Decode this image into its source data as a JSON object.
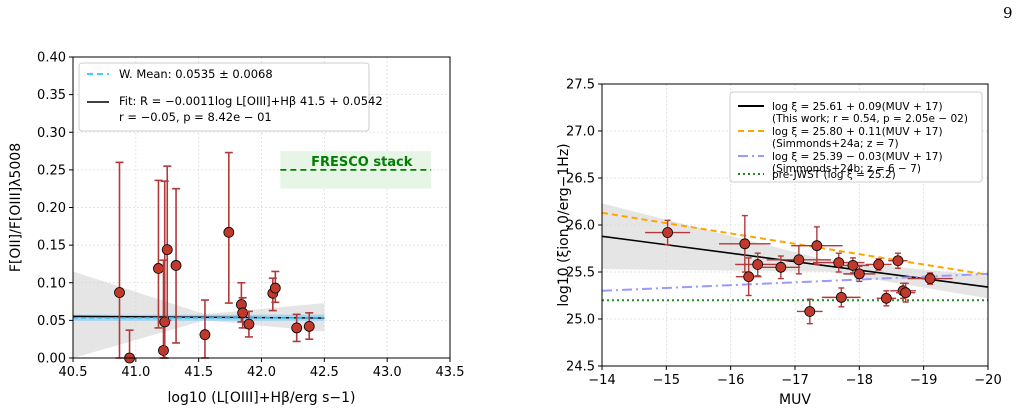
{
  "page_number": "9",
  "chart_data": [
    {
      "type": "scatter",
      "xlabel": "log10 (L[OIII]+Hβ/erg s−1)",
      "ylabel": "F[OII]/F[OIII]λ5008",
      "xlim": [
        40.5,
        43.5
      ],
      "ylim": [
        0.0,
        0.4
      ],
      "xticks": [
        "40.5",
        "41.0",
        "41.5",
        "42.0",
        "42.5",
        "43.0",
        "43.5"
      ],
      "yticks": [
        "0.00",
        "0.05",
        "0.10",
        "0.15",
        "0.20",
        "0.25",
        "0.30",
        "0.35",
        "0.40"
      ],
      "grid": true,
      "legend_position": "top-left",
      "legend": [
        {
          "label": "W. Mean: 0.0535 ± 0.0068",
          "color": "#00bfff",
          "style": "dashed"
        },
        {
          "label": "Fit: R = −0.0011log L[OIII]+Hβ 41.5 + 0.0542",
          "label2": "r = −0.05, p = 8.42e − 01",
          "color": "#000000",
          "style": "solid"
        }
      ],
      "annotation": {
        "label": "FRESCO stack",
        "color": "#008000",
        "x_range": [
          42.15,
          43.35
        ],
        "y": 0.25
      },
      "weighted_mean": {
        "value": 0.0535,
        "err": 0.0068
      },
      "fit": {
        "slope": -0.0011,
        "intercept": 0.0542,
        "x0": 41.5,
        "x_range": [
          40.5,
          42.5
        ]
      },
      "points": [
        {
          "x": 40.87,
          "y": 0.087,
          "ylo": 0.0,
          "yhi": 0.26
        },
        {
          "x": 40.95,
          "y": 0.0,
          "ylo": 0.0,
          "yhi": 0.037
        },
        {
          "x": 41.18,
          "y": 0.119,
          "ylo": 0.04,
          "yhi": 0.236
        },
        {
          "x": 41.22,
          "y": 0.01,
          "ylo": 0.0,
          "yhi": 0.13
        },
        {
          "x": 41.23,
          "y": 0.048,
          "ylo": 0.0,
          "yhi": 0.235
        },
        {
          "x": 41.25,
          "y": 0.144,
          "ylo": 0.05,
          "yhi": 0.255
        },
        {
          "x": 41.32,
          "y": 0.123,
          "ylo": 0.02,
          "yhi": 0.225
        },
        {
          "x": 41.55,
          "y": 0.031,
          "ylo": 0.0,
          "yhi": 0.077
        },
        {
          "x": 41.74,
          "y": 0.167,
          "ylo": 0.073,
          "yhi": 0.273
        },
        {
          "x": 41.84,
          "y": 0.071,
          "ylo": 0.048,
          "yhi": 0.1
        },
        {
          "x": 41.85,
          "y": 0.06,
          "ylo": 0.04,
          "yhi": 0.08
        },
        {
          "x": 41.9,
          "y": 0.045,
          "ylo": 0.028,
          "yhi": 0.062
        },
        {
          "x": 42.09,
          "y": 0.086,
          "ylo": 0.063,
          "yhi": 0.106
        },
        {
          "x": 42.11,
          "y": 0.093,
          "ylo": 0.074,
          "yhi": 0.115
        },
        {
          "x": 42.28,
          "y": 0.04,
          "ylo": 0.022,
          "yhi": 0.058
        },
        {
          "x": 42.38,
          "y": 0.042,
          "ylo": 0.025,
          "yhi": 0.06
        }
      ]
    },
    {
      "type": "scatter",
      "xlabel": "MUV",
      "ylabel": "log10 (ξion,0/erg−1Hz)",
      "xlim": [
        -14,
        -20
      ],
      "ylim": [
        24.5,
        27.5
      ],
      "xticks": [
        "−14",
        "−15",
        "−16",
        "−17",
        "−18",
        "−19",
        "−20"
      ],
      "yticks": [
        "24.5",
        "25.0",
        "25.5",
        "26.0",
        "26.5",
        "27.0",
        "27.5"
      ],
      "grid": true,
      "legend_position": "top-right",
      "legend": [
        {
          "label": "log ξ = 25.61 + 0.09(MUV + 17)",
          "label2": "(This work; r = 0.54, p = 2.05e − 02)",
          "color": "#000000",
          "style": "solid"
        },
        {
          "label": "log ξ = 25.80 + 0.11(MUV + 17)",
          "label2": "(Simmonds+24a; z = 7)",
          "color": "#ffa500",
          "style": "dashed"
        },
        {
          "label": "log ξ = 25.39 − 0.03(MUV + 17)",
          "label2": "(Simmonds+24b; z = 6 − 7)",
          "color": "#9999ff",
          "style": "dashdot"
        },
        {
          "label": "pre-JWST (log ξ = 25.2)",
          "color": "#228b22",
          "style": "dotted"
        }
      ],
      "lines": [
        {
          "a": 25.61,
          "b": 0.09,
          "color": "#000000",
          "style": "solid"
        },
        {
          "a": 25.8,
          "b": 0.11,
          "color": "#ffa500",
          "style": "dashed"
        },
        {
          "a": 25.39,
          "b": -0.03,
          "color": "#9999ff",
          "style": "dashdot"
        },
        {
          "a": 25.2,
          "b": 0.0,
          "color": "#228b22",
          "style": "dotted"
        }
      ],
      "points": [
        {
          "x": -15.02,
          "y": 25.92,
          "xerr": 0.35,
          "yerr": 0.13
        },
        {
          "x": -16.22,
          "y": 25.8,
          "xerr": 0.4,
          "yerr": 0.3
        },
        {
          "x": -16.28,
          "y": 25.45,
          "xerr": 0.2,
          "yerr": 0.2
        },
        {
          "x": -16.42,
          "y": 25.58,
          "xerr": 0.35,
          "yerr": 0.12
        },
        {
          "x": -16.78,
          "y": 25.55,
          "xerr": 0.3,
          "yerr": 0.12
        },
        {
          "x": -17.06,
          "y": 25.63,
          "xerr": 0.5,
          "yerr": 0.15
        },
        {
          "x": -17.23,
          "y": 25.08,
          "xerr": 0.2,
          "yerr": 0.13
        },
        {
          "x": -17.34,
          "y": 25.78,
          "xerr": 0.4,
          "yerr": 0.2
        },
        {
          "x": -17.68,
          "y": 25.6,
          "xerr": 0.4,
          "yerr": 0.1
        },
        {
          "x": -17.72,
          "y": 25.23,
          "xerr": 0.3,
          "yerr": 0.1
        },
        {
          "x": -17.9,
          "y": 25.57,
          "xerr": 0.25,
          "yerr": 0.08
        },
        {
          "x": -18.0,
          "y": 25.48,
          "xerr": 0.25,
          "yerr": 0.08
        },
        {
          "x": -18.3,
          "y": 25.58,
          "xerr": 0.2,
          "yerr": 0.06
        },
        {
          "x": -18.42,
          "y": 25.22,
          "xerr": 0.15,
          "yerr": 0.08
        },
        {
          "x": -18.6,
          "y": 25.62,
          "xerr": 0.15,
          "yerr": 0.08
        },
        {
          "x": -18.68,
          "y": 25.3,
          "xerr": 0.2,
          "yerr": 0.08
        },
        {
          "x": -18.72,
          "y": 25.28,
          "xerr": 0.15,
          "yerr": 0.1
        },
        {
          "x": -19.1,
          "y": 25.43,
          "xerr": 0.35,
          "yerr": 0.06
        }
      ]
    }
  ]
}
